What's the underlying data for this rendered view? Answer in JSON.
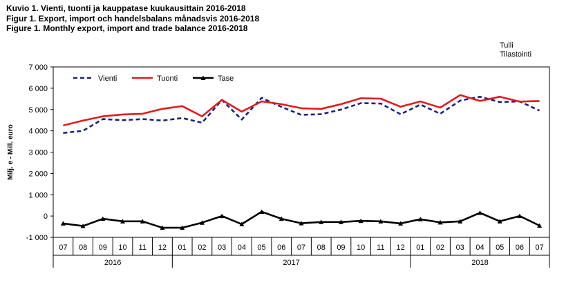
{
  "titles": {
    "line1": "Kuvio  1. Vienti, tuonti ja kauppatase kuukausittain 2016-2018",
    "line2": "Figur  1. Export, import och handelsbalans månadsvis 2016-2018",
    "line3": "Figure  1. Monthly  export, import and trade balance 2016-2018"
  },
  "source": {
    "line1": "Tulli",
    "line2": "Tilastointi"
  },
  "chart_data": {
    "type": "line",
    "ylabel": "Milj. e - Mill. euro",
    "ylim": [
      -1000,
      7000
    ],
    "yticks": [
      -1000,
      0,
      1000,
      2000,
      3000,
      4000,
      5000,
      6000,
      7000
    ],
    "ytick_labels": [
      "-1 000",
      "0",
      "1 000",
      "2 000",
      "3 000",
      "4 000",
      "5 000",
      "6 000",
      "7 000"
    ],
    "categories": [
      "07",
      "08",
      "09",
      "10",
      "11",
      "12",
      "01",
      "02",
      "03",
      "04",
      "05",
      "06",
      "07",
      "08",
      "09",
      "10",
      "11",
      "12",
      "01",
      "02",
      "03",
      "04",
      "05",
      "06",
      "07"
    ],
    "year_groups": [
      {
        "label": "2016",
        "start": 0,
        "end": 5
      },
      {
        "label": "2017",
        "start": 6,
        "end": 17
      },
      {
        "label": "2018",
        "start": 18,
        "end": 24
      }
    ],
    "legend_position": "top-left",
    "grid": false,
    "series": [
      {
        "name": "Vienti",
        "color": "#1a237e",
        "style": "dashed",
        "values": [
          3900,
          4000,
          4550,
          4500,
          4550,
          4480,
          4600,
          4380,
          5450,
          4530,
          5550,
          5120,
          4750,
          4780,
          5000,
          5300,
          5280,
          4780,
          5230,
          4800,
          5420,
          5600,
          5350,
          5380,
          4950
        ]
      },
      {
        "name": "Tuonti",
        "color": "#e31a1c",
        "style": "solid",
        "values": [
          4250,
          4480,
          4680,
          4770,
          4800,
          5030,
          5160,
          4680,
          5450,
          4900,
          5380,
          5250,
          5060,
          5030,
          5250,
          5530,
          5510,
          5130,
          5380,
          5090,
          5680,
          5400,
          5600,
          5370,
          5400
        ]
      },
      {
        "name": "Tase",
        "color": "#000000",
        "style": "solid-marker",
        "values": [
          -350,
          -470,
          -130,
          -250,
          -250,
          -550,
          -550,
          -310,
          0,
          -380,
          200,
          -130,
          -340,
          -280,
          -280,
          -230,
          -250,
          -350,
          -150,
          -300,
          -250,
          150,
          -250,
          0,
          -450
        ]
      }
    ]
  }
}
